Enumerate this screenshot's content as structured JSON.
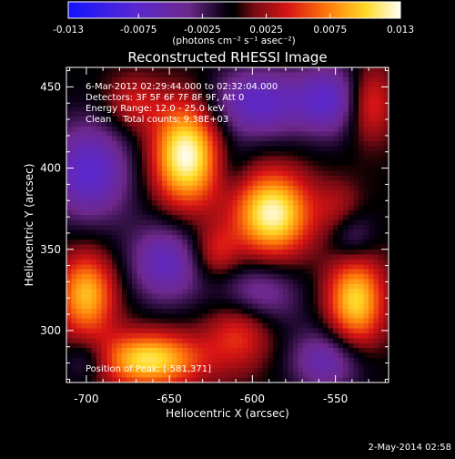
{
  "chart_data": {
    "type": "heatmap",
    "title": "Reconstructed RHESSI Image",
    "xlabel": "Heliocentric X (arcsec)",
    "ylabel": "Heliocentric Y (arcsec)",
    "xlim": [
      -712,
      -518
    ],
    "ylim": [
      268,
      462
    ],
    "x_ticks": [
      -700,
      -650,
      -600,
      -550
    ],
    "y_ticks": [
      300,
      350,
      400,
      450
    ],
    "colorbar": {
      "range": [
        -0.013,
        0.013
      ],
      "ticks": [
        -0.013,
        -0.0075,
        -0.0025,
        0.0025,
        0.0075,
        0.013
      ],
      "tick_labels": [
        "-0.013",
        "-0.0075",
        "-0.0025",
        "0.0025",
        "0.0075",
        "0.013"
      ],
      "units_label": "(photons cm⁻² s⁻¹ asec⁻²)"
    },
    "annotations": [
      "6-Mar-2012 02:29:44.000 to 02:32:04.000",
      "Detectors: 3F 5F 6F 7F 8F 9F, Att 0",
      "Energy Range: 12.0 - 25.0 keV",
      "Clean    Total counts: 9.38E+03",
      "Position of Peak: [-581,371]"
    ],
    "peak_position": [
      -581,
      371
    ],
    "sources": [
      {
        "x": -640,
        "y": 408,
        "amp": 0.013,
        "sx": 14,
        "sy": 22
      },
      {
        "x": -588,
        "y": 372,
        "amp": 0.0125,
        "sx": 16,
        "sy": 18
      },
      {
        "x": -662,
        "y": 282,
        "amp": 0.011,
        "sx": 22,
        "sy": 12
      },
      {
        "x": -700,
        "y": 322,
        "amp": 0.0095,
        "sx": 12,
        "sy": 18
      },
      {
        "x": -538,
        "y": 318,
        "amp": 0.0105,
        "sx": 12,
        "sy": 20
      },
      {
        "x": -608,
        "y": 300,
        "amp": 0.0055,
        "sx": 14,
        "sy": 16
      },
      {
        "x": -622,
        "y": 348,
        "amp": 0.0045,
        "sx": 10,
        "sy": 12
      },
      {
        "x": -530,
        "y": 440,
        "amp": 0.0065,
        "sx": 10,
        "sy": 16
      },
      {
        "x": -672,
        "y": 440,
        "amp": 0.004,
        "sx": 12,
        "sy": 12
      },
      {
        "x": -548,
        "y": 375,
        "amp": 0.003,
        "sx": 10,
        "sy": 12
      },
      {
        "x": -698,
        "y": 398,
        "amp": -0.0075,
        "sx": 18,
        "sy": 22
      },
      {
        "x": -652,
        "y": 342,
        "amp": -0.0065,
        "sx": 16,
        "sy": 18
      },
      {
        "x": -598,
        "y": 440,
        "amp": -0.007,
        "sx": 20,
        "sy": 16
      },
      {
        "x": -552,
        "y": 442,
        "amp": -0.007,
        "sx": 16,
        "sy": 16
      },
      {
        "x": -598,
        "y": 322,
        "amp": -0.0055,
        "sx": 18,
        "sy": 14
      },
      {
        "x": -555,
        "y": 282,
        "amp": -0.006,
        "sx": 16,
        "sy": 14
      },
      {
        "x": -700,
        "y": 282,
        "amp": -0.004,
        "sx": 10,
        "sy": 10
      },
      {
        "x": -540,
        "y": 358,
        "amp": -0.004,
        "sx": 10,
        "sy": 12
      },
      {
        "x": -612,
        "y": 400,
        "amp": -0.002,
        "sx": 8,
        "sy": 12
      }
    ]
  },
  "footer": {
    "date_stamp": "2-May-2014 02:58"
  },
  "colors": {
    "background": "#000000",
    "foreground": "#ffffff"
  }
}
